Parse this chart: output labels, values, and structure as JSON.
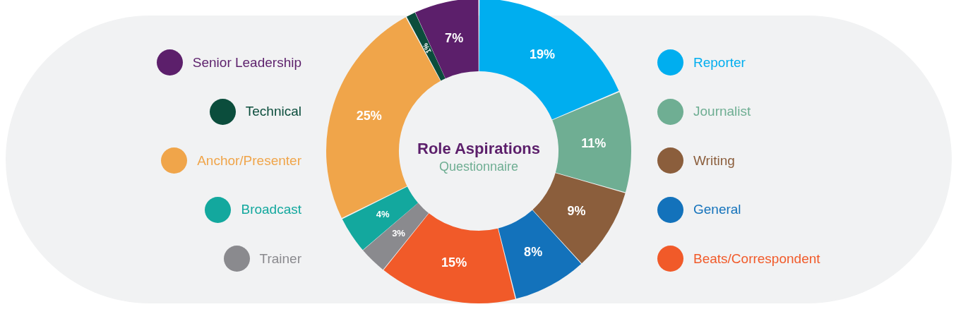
{
  "chart_data": {
    "type": "donut",
    "title": "Role Aspirations",
    "subtitle": "Questionnaire",
    "categories": [
      "Reporter",
      "Journalist",
      "Writing",
      "General",
      "Beats/Correspondent",
      "Trainer",
      "Broadcast",
      "Anchor/Presenter",
      "Technical",
      "Senior Leadership"
    ],
    "values": [
      19,
      11,
      9,
      8,
      15,
      3,
      4,
      25,
      1,
      7
    ],
    "value_labels": [
      "19%",
      "11%",
      "9%",
      "8%",
      "15%",
      "3%",
      "4%",
      "25%",
      "1%",
      "7%"
    ],
    "colors": [
      "#00aeef",
      "#6fae93",
      "#8b5e3c",
      "#1372bb",
      "#f15a29",
      "#8a8a8e",
      "#13a89e",
      "#f0a54a",
      "#0b4d3c",
      "#5c1f6b"
    ],
    "legend": "left right"
  }
}
